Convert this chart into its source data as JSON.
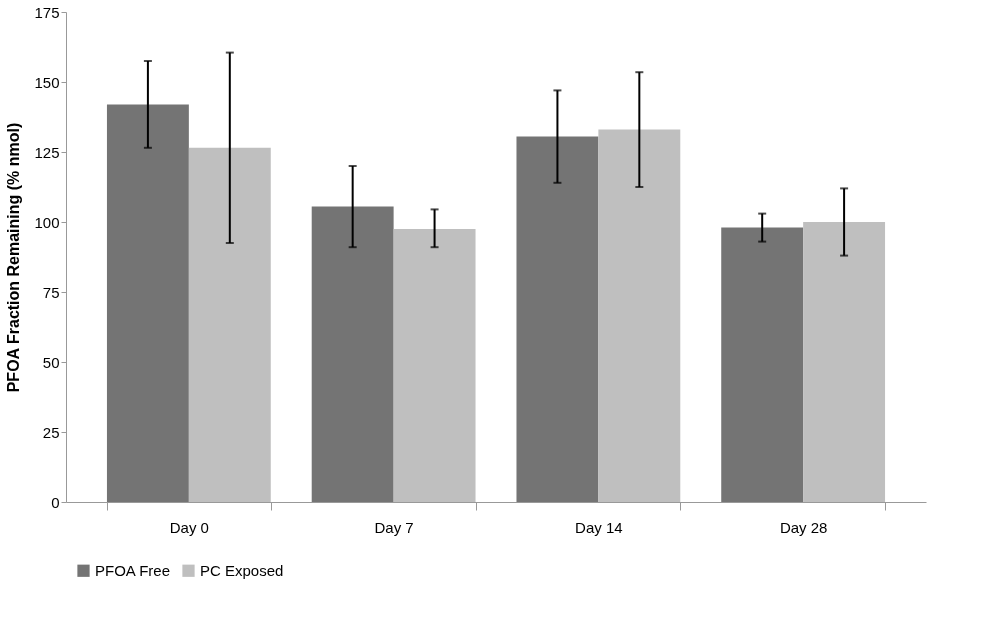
{
  "chart_data": {
    "type": "bar",
    "ylabel": "PFOA Fraction Remaining (% nmol)",
    "categories": [
      "Day 0",
      "Day 7",
      "Day 14",
      "Day 28"
    ],
    "series": [
      {
        "name": "PFOA Free",
        "color": "#747474",
        "values": [
          142,
          105.5,
          130.5,
          98
        ],
        "errors": [
          [
            126.5,
            157.5
          ],
          [
            91,
            120
          ],
          [
            114,
            147
          ],
          [
            93,
            103
          ]
        ]
      },
      {
        "name": "PC Exposed",
        "color": "#bfbfbf",
        "values": [
          126.5,
          97.5,
          133,
          100
        ],
        "errors": [
          [
            92.5,
            160.5
          ],
          [
            91,
            104.5
          ],
          [
            112.5,
            153.5
          ],
          [
            88,
            112
          ]
        ]
      }
    ],
    "ylim": [
      0,
      175
    ],
    "yticks": [
      0,
      25,
      50,
      75,
      100,
      125,
      150,
      175
    ],
    "grid": false,
    "legend": "bottom"
  }
}
